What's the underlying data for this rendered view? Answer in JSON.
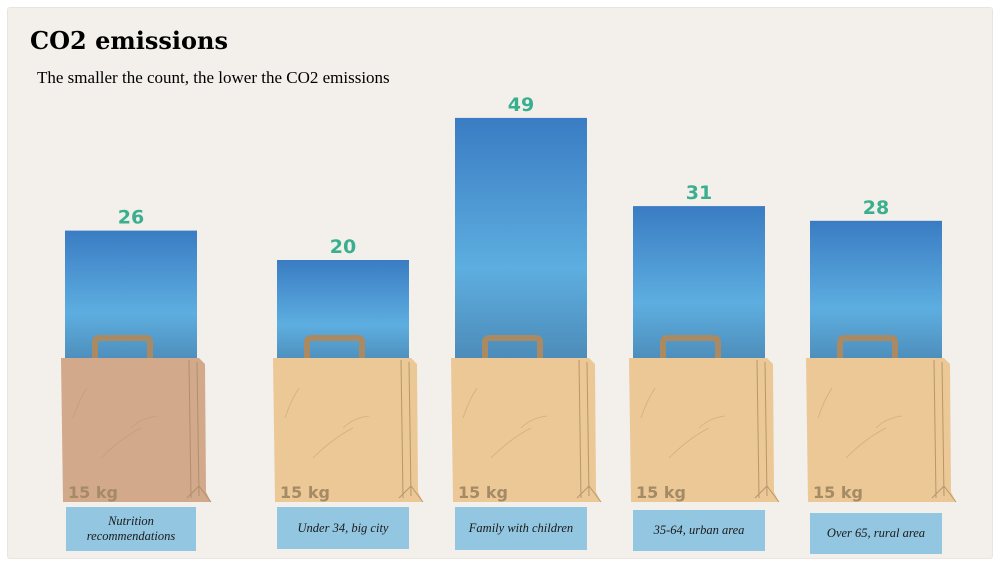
{
  "chart_data": {
    "type": "bar",
    "title": "CO2 emissions",
    "subtitle": "The smaller the count, the lower the CO2 emissions",
    "categories": [
      "Nutrition recommendations",
      "Under 34, big city",
      "Family with children",
      "35-64, urban area",
      "Over 65, rural area"
    ],
    "values": [
      26,
      20,
      49,
      31,
      28
    ],
    "bag_label": "15 kg",
    "highlighted_category": "Nutrition recommendations"
  },
  "colors": {
    "value_text": "#3aaf8f",
    "bar_top": "#3a7cc3",
    "bar_mid": "#5daee0",
    "bag": "#ebc895",
    "bag_highlight": "#d2a98a",
    "bag_text": "#a58b65",
    "label_box": "#93c6e1"
  }
}
